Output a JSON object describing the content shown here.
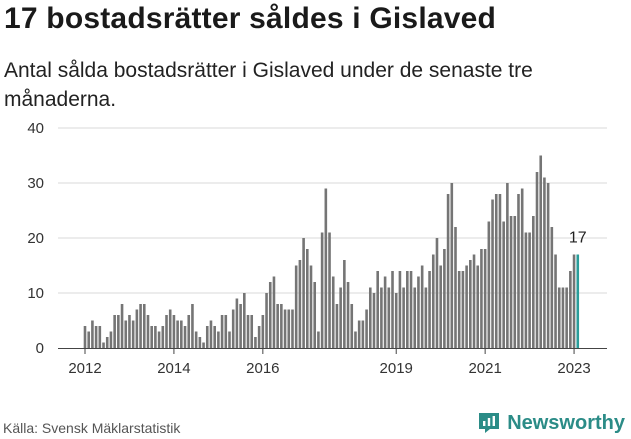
{
  "header": {
    "title": "17 bostadsrätter såldes i Gislaved",
    "subtitle": "Antal sålda bostadsrätter i Gislaved under de senaste tre månaderna."
  },
  "footer": {
    "source": "Källa: Svensk Mäklarstatistik",
    "brand": "Newsworthy"
  },
  "colors": {
    "bar": "#757575",
    "highlight": "#2a9d9a",
    "grid": "#d9d9d9",
    "axis": "#444444",
    "brand": "#2b8c87"
  },
  "icons": {
    "brand_logo": "newsworthy-logo-icon"
  },
  "chart_data": {
    "type": "bar",
    "title": "17 bostadsrätter såldes i Gislaved",
    "xlabel": "",
    "ylabel": "",
    "ylim": [
      0,
      40
    ],
    "yticks": [
      0,
      10,
      20,
      30,
      40
    ],
    "grid": true,
    "start": "2012-01",
    "x_tick_labels": [
      "2012",
      "2014",
      "2016",
      "2019",
      "2021",
      "2023"
    ],
    "x_ticks": [
      {
        "label": "2012",
        "index": 0
      },
      {
        "label": "2014",
        "index": 24
      },
      {
        "label": "2016",
        "index": 48
      },
      {
        "label": "2019",
        "index": 84
      },
      {
        "label": "2021",
        "index": 108
      },
      {
        "label": "2023",
        "index": 132
      }
    ],
    "values": [
      4,
      3,
      5,
      4,
      4,
      1,
      2,
      3,
      6,
      6,
      8,
      5,
      6,
      5,
      7,
      8,
      8,
      6,
      4,
      4,
      3,
      4,
      6,
      7,
      6,
      5,
      5,
      4,
      6,
      8,
      3,
      2,
      1,
      4,
      5,
      4,
      3,
      6,
      6,
      3,
      7,
      9,
      8,
      10,
      6,
      6,
      2,
      4,
      6,
      10,
      12,
      13,
      8,
      8,
      7,
      7,
      7,
      15,
      16,
      20,
      18,
      15,
      12,
      3,
      21,
      29,
      21,
      13,
      8,
      11,
      16,
      12,
      8,
      3,
      5,
      5,
      7,
      11,
      10,
      14,
      11,
      13,
      11,
      14,
      10,
      14,
      11,
      14,
      14,
      11,
      13,
      15,
      11,
      14,
      17,
      20,
      15,
      18,
      28,
      30,
      22,
      14,
      14,
      15,
      16,
      17,
      15,
      18,
      18,
      23,
      27,
      28,
      28,
      23,
      30,
      24,
      24,
      28,
      29,
      21,
      21,
      24,
      32,
      35,
      31,
      30,
      22,
      17,
      11,
      11,
      11,
      14,
      17,
      17
    ],
    "highlight_index": 133,
    "highlight_label": "17"
  }
}
